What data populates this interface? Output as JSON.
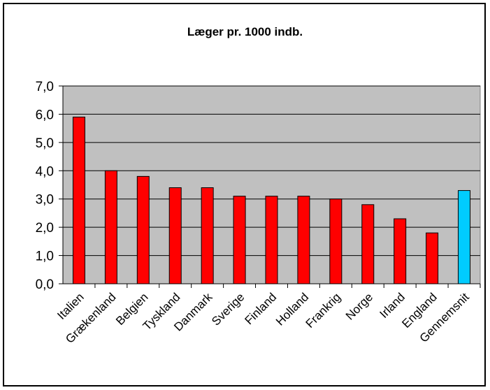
{
  "chart_data": {
    "type": "bar",
    "title": "Læger pr. 1000 indb.",
    "xlabel": "",
    "ylabel": "",
    "categories": [
      "Italien",
      "Grækenland",
      "Belgien",
      "Tyskland",
      "Danmark",
      "Sverige",
      "Finland",
      "Holland",
      "Frankrig",
      "Norge",
      "Irland",
      "England",
      "Gennemsnit"
    ],
    "values": [
      5.9,
      4.0,
      3.8,
      3.4,
      3.4,
      3.1,
      3.1,
      3.1,
      3.0,
      2.8,
      2.3,
      1.8,
      3.3
    ],
    "ylim": [
      0,
      7
    ],
    "yticks": [
      "0,0",
      "1,0",
      "2,0",
      "3,0",
      "4,0",
      "5,0",
      "6,0",
      "7,0"
    ],
    "grid": true,
    "colors": {
      "bar": "#ff0000",
      "highlight_bar": "#00ccff",
      "plot_background": "#c0c0c0",
      "bar_outline": "#000000"
    },
    "highlight_category": "Gennemsnit"
  }
}
